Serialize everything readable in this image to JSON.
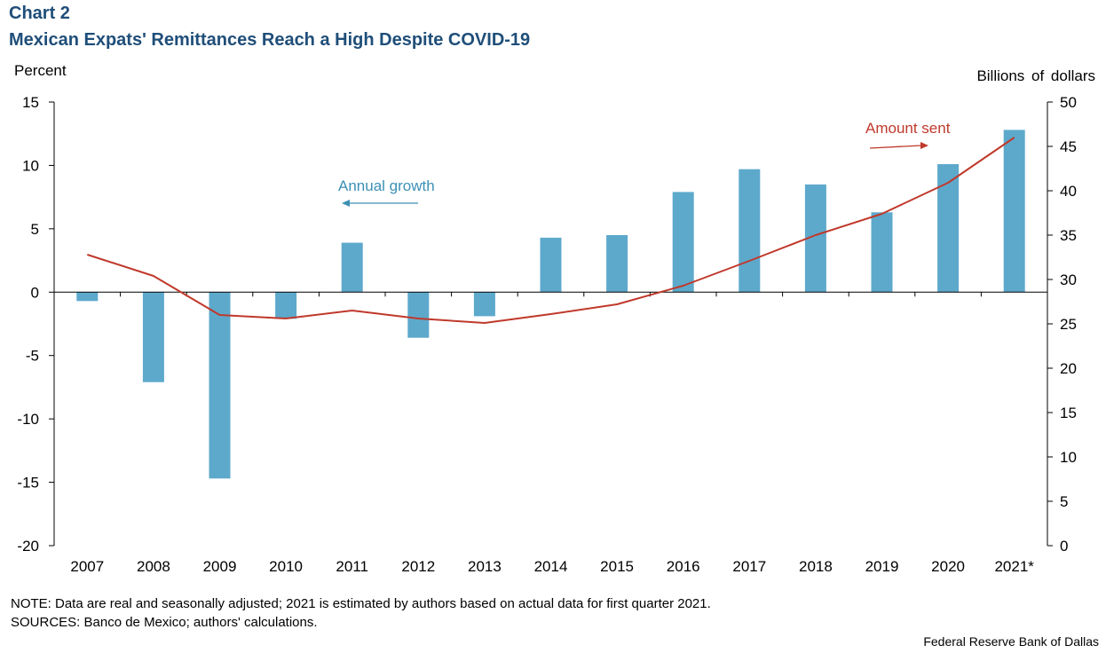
{
  "header": {
    "chart_number": "Chart 2",
    "title": "Mexican Expats' Remittances Reach a High Despite COVID-19"
  },
  "axes": {
    "left_unit": "Percent",
    "right_unit": "Billions  of dollars"
  },
  "annotations": {
    "growth_label": "Annual  growth",
    "sent_label": "Amount  sent"
  },
  "footer": {
    "note": "NOTE: Data are real and seasonally adjusted; 2021 is estimated by authors based on actual data for first quarter 2021.",
    "sources": "SOURCES:  Banco de Mexico;  authors' calculations.",
    "credit": "Federal Reserve  Bank of Dallas"
  },
  "colors": {
    "bar": "#5da9cc",
    "line": "#c0392b",
    "title": "#1f4e79",
    "growth_annotation": "#3c90b5"
  },
  "chart_data": {
    "type": "bar",
    "title": "Mexican Expats' Remittances Reach a High Despite COVID-19",
    "categories": [
      "2007",
      "2008",
      "2009",
      "2010",
      "2011",
      "2012",
      "2013",
      "2014",
      "2015",
      "2016",
      "2017",
      "2018",
      "2019",
      "2020",
      "2021*"
    ],
    "series": [
      {
        "name": "Annual  growth",
        "type": "bar",
        "axis": "left",
        "values": [
          -0.7,
          -7.1,
          -14.7,
          -2.1,
          3.9,
          -3.6,
          -1.9,
          4.3,
          4.5,
          7.9,
          9.7,
          8.5,
          6.3,
          10.1,
          12.8
        ]
      },
      {
        "name": "Amount  sent",
        "type": "line",
        "axis": "right",
        "values": [
          32.8,
          30.4,
          26.0,
          25.6,
          26.5,
          25.6,
          25.1,
          26.1,
          27.2,
          29.3,
          32.1,
          35.0,
          37.4,
          40.9,
          46.0
        ]
      }
    ],
    "ylabel_left": "Percent",
    "ylabel_right": "Billions  of dollars",
    "ylim_left": [
      -20,
      15
    ],
    "ylim_right": [
      0,
      50
    ],
    "yticks_left": [
      "15",
      "10",
      "5",
      "0",
      "-5",
      "-10",
      "-15",
      "-20"
    ],
    "yticks_right": [
      "50",
      "45",
      "40",
      "35",
      "30",
      "25",
      "20",
      "15",
      "10",
      "5",
      "0"
    ],
    "grid": false
  }
}
